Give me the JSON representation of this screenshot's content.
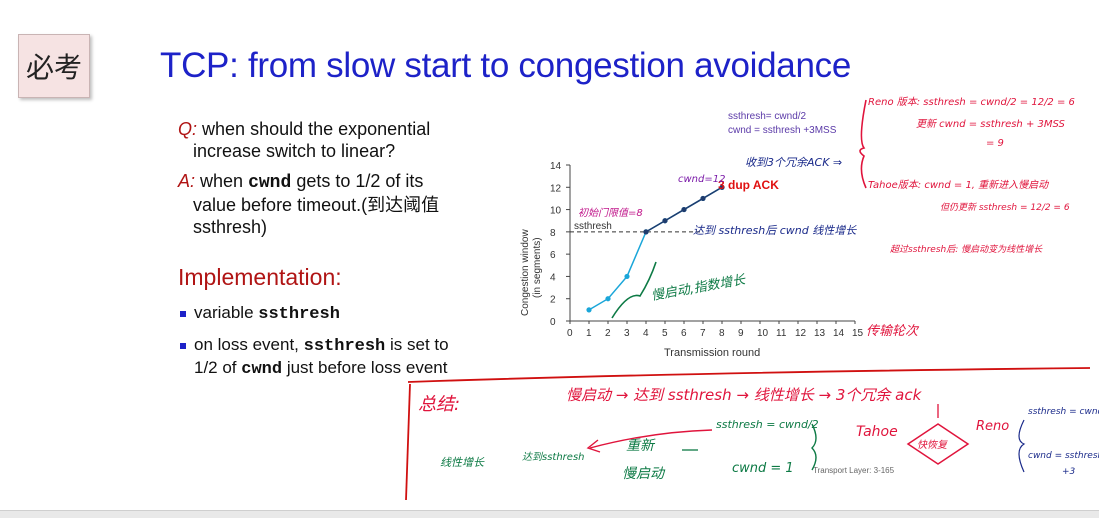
{
  "sticky_note": "必考",
  "title": "TCP: from slow start to congestion avoidance",
  "qa": {
    "q_label": "Q:",
    "q_line1": "when should the exponential",
    "q_line2": "increase switch to linear?",
    "a_label": "A:",
    "a_pre": "when",
    "a_code": "cwnd",
    "a_post": "gets to 1/2 of its",
    "a_line2": "value before timeout.(到达阈值",
    "a_line3": "ssthresh)"
  },
  "implementation": {
    "heading": "Implementation:",
    "b1_text": "variable",
    "b1_code": "ssthresh",
    "b2_pre": "on loss event,",
    "b2_code": "ssthresh",
    "b2_post": "is set to",
    "b2_line2_pre": "1/2 of",
    "b2_line2_code": "cwnd",
    "b2_line2_post": "just before loss event"
  },
  "chart_data": {
    "type": "line",
    "ylabel_line1": "Congestion window",
    "ylabel_line2": "(in segments)",
    "xlabel": "Transmission round",
    "x_ticks": [
      "0",
      "1",
      "2",
      "3",
      "4",
      "5",
      "6",
      "7",
      "8",
      "9",
      "10",
      "11",
      "12",
      "13",
      "14",
      "15"
    ],
    "y_ticks": [
      "0",
      "2",
      "4",
      "6",
      "8",
      "10",
      "12",
      "14"
    ],
    "xlim": [
      0,
      15
    ],
    "ylim": [
      0,
      14
    ],
    "ssthresh_label": "ssthresh",
    "ssthresh_value": 8,
    "series": [
      {
        "x": [
          1,
          2,
          3,
          4,
          5,
          6,
          7,
          8
        ],
        "values": [
          1,
          2,
          4,
          8,
          9,
          10,
          11,
          12
        ],
        "color": "#1aa6d9"
      },
      {
        "x": [
          4,
          5,
          6,
          7,
          8
        ],
        "values": [
          8,
          9,
          10,
          11,
          12
        ],
        "color": "#1f3c6e"
      }
    ],
    "dup_ack_label": "3 dup ACK",
    "formula1": "ssthresh= cwnd/2",
    "formula2": "cwnd = ssthresh +3MSS"
  },
  "handwriting": {
    "cwnd12": "cwnd=12",
    "initial_thresh": "初始门限值=8",
    "received_3dup": "收到3个冗余ACK ⇒",
    "after_reach": "达到 ssthresh后 cwnd 线性增长",
    "slow_start": "慢启动,指数增长",
    "trans_rounds": "传输轮次",
    "reno_line1": "Reno 版本: ssthresh = cwnd/2 = 12/2 = 6",
    "reno_line2": "更新 cwnd = ssthresh + 3MSS",
    "reno_line3": "= 9",
    "tahoe_line1": "Tahoe版本: cwnd = 1, 重新进入慢启动",
    "tahoe_line2": "但仍更新 ssthresh = 12/2 = 6",
    "tahoe_line3": "超过ssthresh后: 慢启动变为线性增长"
  },
  "summary": {
    "label": "总结:",
    "flow": "慢启动 → 达到 ssthresh → 线性增长 → 3个冗余 ack",
    "tahoe": "Tahoe",
    "reno": "Reno",
    "middle": "快恢复",
    "reno_ss": "ssthresh = cwnd/2",
    "reno_cwnd1": "cwnd = ssthresh",
    "reno_cwnd2": "+3",
    "tahoe_ss": "ssthresh = cwnd/2",
    "tahoe_cwnd": "cwnd = 1",
    "restart1": "重新",
    "restart2": "慢启动",
    "reach": "达到ssthresh",
    "linear": "线性增长"
  },
  "footer": "Transport Layer: 3-165",
  "colors": {
    "title": "#1d22c8",
    "accent_red": "#b01414",
    "ink_red": "#e0143c",
    "ink_blue": "#1a2a8a",
    "ink_green": "#0d7a45"
  }
}
